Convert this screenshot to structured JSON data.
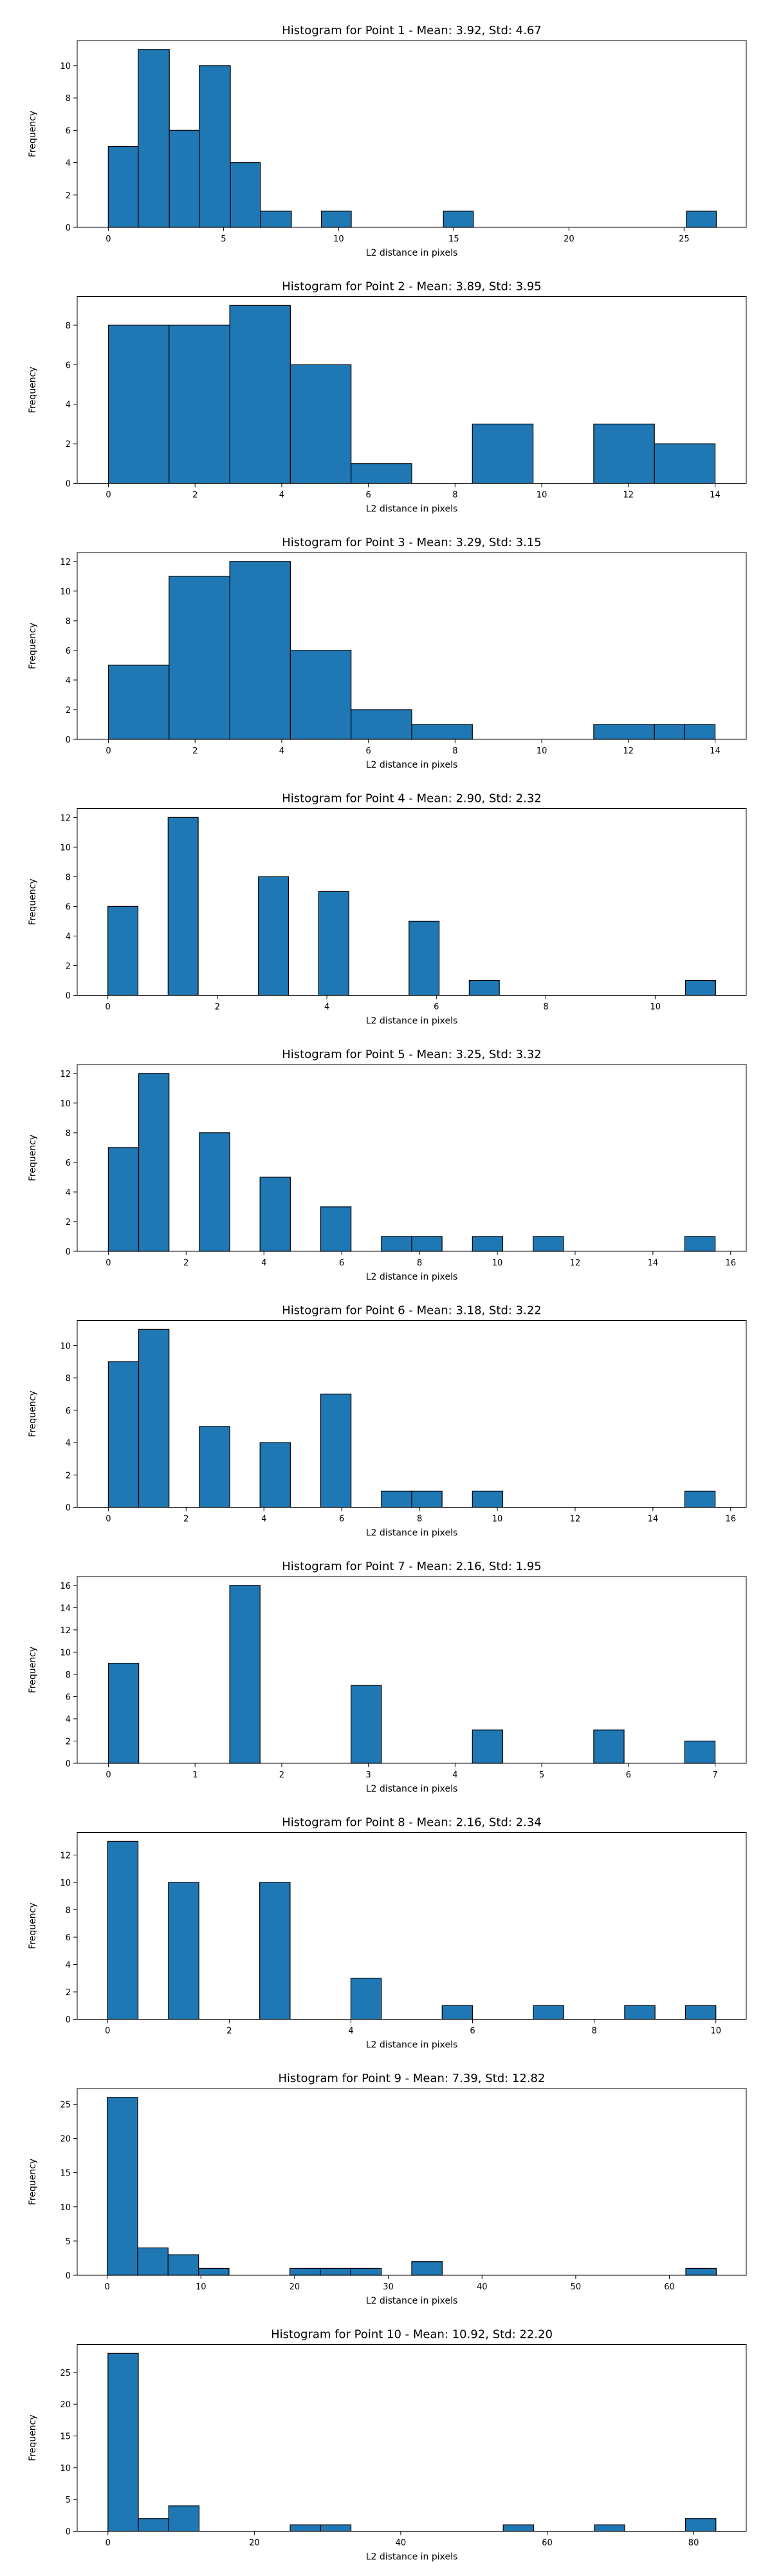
{
  "chart_data": [
    {
      "type": "bar",
      "title": "Histogram for Point 1 - Mean: 3.92, Std: 4.67",
      "xlabel": "L2 distance in pixels",
      "ylabel": "Frequency",
      "bar_color": "#1f77b4",
      "xlim": [
        -1.35,
        27.7
      ],
      "ylim": [
        0,
        11.55
      ],
      "xticks": [
        0,
        5,
        10,
        15,
        20,
        25
      ],
      "yticks": [
        0,
        2,
        4,
        6,
        8,
        10
      ],
      "bins": [
        {
          "x0": 0.0,
          "x1": 1.3,
          "value": 5
        },
        {
          "x0": 1.3,
          "x1": 2.65,
          "value": 11
        },
        {
          "x0": 2.65,
          "x1": 3.95,
          "value": 6
        },
        {
          "x0": 3.95,
          "x1": 5.3,
          "value": 10
        },
        {
          "x0": 5.3,
          "x1": 6.6,
          "value": 4
        },
        {
          "x0": 6.6,
          "x1": 7.95,
          "value": 1
        },
        {
          "x0": 9.25,
          "x1": 10.55,
          "value": 1
        },
        {
          "x0": 14.55,
          "x1": 15.85,
          "value": 1
        },
        {
          "x0": 25.1,
          "x1": 26.4,
          "value": 1
        }
      ]
    },
    {
      "type": "bar",
      "title": "Histogram for Point 2 - Mean: 3.89, Std: 3.95",
      "xlabel": "L2 distance in pixels",
      "ylabel": "Frequency",
      "bar_color": "#1f77b4",
      "xlim": [
        -0.72,
        14.72
      ],
      "ylim": [
        0,
        9.45
      ],
      "xticks": [
        0,
        2,
        4,
        6,
        8,
        10,
        12,
        14
      ],
      "yticks": [
        0,
        2,
        4,
        6,
        8
      ],
      "bins": [
        {
          "x0": 0.0,
          "x1": 1.4,
          "value": 8
        },
        {
          "x0": 1.4,
          "x1": 2.8,
          "value": 8
        },
        {
          "x0": 2.8,
          "x1": 4.2,
          "value": 9
        },
        {
          "x0": 4.2,
          "x1": 5.6,
          "value": 6
        },
        {
          "x0": 5.6,
          "x1": 7.0,
          "value": 1
        },
        {
          "x0": 8.4,
          "x1": 9.8,
          "value": 3
        },
        {
          "x0": 11.2,
          "x1": 12.6,
          "value": 3
        },
        {
          "x0": 12.6,
          "x1": 14.0,
          "value": 2
        }
      ]
    },
    {
      "type": "bar",
      "title": "Histogram for Point 3 - Mean: 3.29, Std: 3.15",
      "xlabel": "L2 distance in pixels",
      "ylabel": "Frequency",
      "bar_color": "#1f77b4",
      "xlim": [
        -0.72,
        14.72
      ],
      "ylim": [
        0,
        12.6
      ],
      "xticks": [
        0,
        2,
        4,
        6,
        8,
        10,
        12,
        14
      ],
      "yticks": [
        0,
        2,
        4,
        6,
        8,
        10,
        12
      ],
      "bins": [
        {
          "x0": 0.0,
          "x1": 1.4,
          "value": 5
        },
        {
          "x0": 1.4,
          "x1": 2.8,
          "value": 11
        },
        {
          "x0": 2.8,
          "x1": 4.2,
          "value": 12
        },
        {
          "x0": 4.2,
          "x1": 5.6,
          "value": 6
        },
        {
          "x0": 5.6,
          "x1": 7.0,
          "value": 2
        },
        {
          "x0": 7.0,
          "x1": 8.4,
          "value": 1
        },
        {
          "x0": 11.2,
          "x1": 12.6,
          "value": 1
        },
        {
          "x0": 12.6,
          "x1": 14.0,
          "value": 1
        },
        {
          "x0": 14.0,
          "x1": 14.0,
          "value": 0
        }
      ],
      "extra_bins_note": "",
      "bins_fixed": [
        {
          "x0": 0.0,
          "x1": 1.4,
          "value": 5
        },
        {
          "x0": 1.4,
          "x1": 2.8,
          "value": 11
        },
        {
          "x0": 2.8,
          "x1": 4.2,
          "value": 12
        },
        {
          "x0": 4.2,
          "x1": 5.6,
          "value": 6
        },
        {
          "x0": 5.6,
          "x1": 7.0,
          "value": 2
        },
        {
          "x0": 7.0,
          "x1": 8.4,
          "value": 1
        },
        {
          "x0": 11.2,
          "x1": 12.6,
          "value": 1
        },
        {
          "x0": 12.6,
          "x1": 13.3,
          "value": 1
        },
        {
          "x0": 13.3,
          "x1": 14.0,
          "value": 1
        }
      ]
    },
    {
      "type": "bar",
      "title": "Histogram for Point 4 - Mean: 2.90, Std: 2.32",
      "xlabel": "L2 distance in pixels",
      "ylabel": "Frequency",
      "bar_color": "#1f77b4",
      "xlim": [
        -0.56,
        11.66
      ],
      "ylim": [
        0,
        12.6
      ],
      "xticks": [
        0,
        2,
        4,
        6,
        8,
        10
      ],
      "yticks": [
        0,
        2,
        4,
        6,
        8,
        10,
        12
      ],
      "bins": [
        {
          "x0": 0.0,
          "x1": 0.55,
          "value": 6
        },
        {
          "x0": 1.1,
          "x1": 1.65,
          "value": 12
        },
        {
          "x0": 2.75,
          "x1": 3.3,
          "value": 8
        },
        {
          "x0": 3.85,
          "x1": 4.4,
          "value": 7
        },
        {
          "x0": 5.5,
          "x1": 6.05,
          "value": 5
        },
        {
          "x0": 6.6,
          "x1": 7.15,
          "value": 1
        },
        {
          "x0": 10.55,
          "x1": 11.1,
          "value": 1
        }
      ]
    },
    {
      "type": "bar",
      "title": "Histogram for Point 5 - Mean: 3.25, Std: 3.32",
      "xlabel": "L2 distance in pixels",
      "ylabel": "Frequency",
      "bar_color": "#1f77b4",
      "xlim": [
        -0.8,
        16.4
      ],
      "ylim": [
        0,
        12.6
      ],
      "xticks": [
        0,
        2,
        4,
        6,
        8,
        10,
        12,
        14,
        16
      ],
      "yticks": [
        0,
        2,
        4,
        6,
        8,
        10,
        12
      ],
      "bins": [
        {
          "x0": 0.0,
          "x1": 0.78,
          "value": 7
        },
        {
          "x0": 0.78,
          "x1": 1.56,
          "value": 12
        },
        {
          "x0": 2.34,
          "x1": 3.12,
          "value": 8
        },
        {
          "x0": 3.9,
          "x1": 4.68,
          "value": 5
        },
        {
          "x0": 5.46,
          "x1": 6.24,
          "value": 3
        },
        {
          "x0": 7.02,
          "x1": 7.8,
          "value": 1
        },
        {
          "x0": 7.8,
          "x1": 8.58,
          "value": 1
        },
        {
          "x0": 9.36,
          "x1": 10.14,
          "value": 1
        },
        {
          "x0": 10.92,
          "x1": 11.7,
          "value": 1
        },
        {
          "x0": 14.82,
          "x1": 15.6,
          "value": 1
        }
      ]
    },
    {
      "type": "bar",
      "title": "Histogram for Point 6 - Mean: 3.18, Std: 3.22",
      "xlabel": "L2 distance in pixels",
      "ylabel": "Frequency",
      "bar_color": "#1f77b4",
      "xlim": [
        -0.8,
        16.4
      ],
      "ylim": [
        0,
        11.55
      ],
      "xticks": [
        0,
        2,
        4,
        6,
        8,
        10,
        12,
        14,
        16
      ],
      "yticks": [
        0,
        2,
        4,
        6,
        8,
        10
      ],
      "bins": [
        {
          "x0": 0.0,
          "x1": 0.78,
          "value": 9
        },
        {
          "x0": 0.78,
          "x1": 1.56,
          "value": 11
        },
        {
          "x0": 2.34,
          "x1": 3.12,
          "value": 5
        },
        {
          "x0": 3.9,
          "x1": 4.68,
          "value": 4
        },
        {
          "x0": 5.46,
          "x1": 6.24,
          "value": 7
        },
        {
          "x0": 7.02,
          "x1": 7.8,
          "value": 1
        },
        {
          "x0": 7.8,
          "x1": 8.58,
          "value": 1
        },
        {
          "x0": 9.36,
          "x1": 10.14,
          "value": 1
        },
        {
          "x0": 14.82,
          "x1": 15.6,
          "value": 1
        }
      ]
    },
    {
      "type": "bar",
      "title": "Histogram for Point 7 - Mean: 2.16, Std: 1.95",
      "xlabel": "L2 distance in pixels",
      "ylabel": "Frequency",
      "bar_color": "#1f77b4",
      "xlim": [
        -0.36,
        7.36
      ],
      "ylim": [
        0,
        16.8
      ],
      "xticks": [
        0,
        1,
        2,
        3,
        4,
        5,
        6,
        7
      ],
      "yticks": [
        0,
        2,
        4,
        6,
        8,
        10,
        12,
        14,
        16
      ],
      "bins": [
        {
          "x0": 0.0,
          "x1": 0.35,
          "value": 9
        },
        {
          "x0": 1.4,
          "x1": 1.75,
          "value": 16
        },
        {
          "x0": 2.8,
          "x1": 3.15,
          "value": 7
        },
        {
          "x0": 4.2,
          "x1": 4.55,
          "value": 3
        },
        {
          "x0": 5.6,
          "x1": 5.95,
          "value": 3
        },
        {
          "x0": 6.65,
          "x1": 7.0,
          "value": 2
        }
      ]
    },
    {
      "type": "bar",
      "title": "Histogram for Point 8 - Mean: 2.16, Std: 2.34",
      "xlabel": "L2 distance in pixels",
      "ylabel": "Frequency",
      "bar_color": "#1f77b4",
      "xlim": [
        -0.5,
        10.5
      ],
      "ylim": [
        0,
        13.65
      ],
      "xticks": [
        0,
        2,
        4,
        6,
        8,
        10
      ],
      "yticks": [
        0,
        2,
        4,
        6,
        8,
        10,
        12
      ],
      "bins": [
        {
          "x0": 0.0,
          "x1": 0.5,
          "value": 13
        },
        {
          "x0": 1.0,
          "x1": 1.5,
          "value": 10
        },
        {
          "x0": 2.5,
          "x1": 3.0,
          "value": 10
        },
        {
          "x0": 4.0,
          "x1": 4.5,
          "value": 3
        },
        {
          "x0": 5.5,
          "x1": 6.0,
          "value": 1
        },
        {
          "x0": 7.0,
          "x1": 7.5,
          "value": 1
        },
        {
          "x0": 8.5,
          "x1": 9.0,
          "value": 1
        },
        {
          "x0": 9.5,
          "x1": 10.0,
          "value": 1
        }
      ]
    },
    {
      "type": "bar",
      "title": "Histogram for Point 9 - Mean: 7.39, Std: 12.82",
      "xlabel": "L2 distance in pixels",
      "ylabel": "Frequency",
      "bar_color": "#1f77b4",
      "xlim": [
        -3.2,
        68.2
      ],
      "ylim": [
        0,
        27.3
      ],
      "xticks": [
        0,
        10,
        20,
        30,
        40,
        50,
        60
      ],
      "yticks": [
        0,
        5,
        10,
        15,
        20,
        25
      ],
      "bins": [
        {
          "x0": 0.0,
          "x1": 3.25,
          "value": 26
        },
        {
          "x0": 3.25,
          "x1": 6.5,
          "value": 4
        },
        {
          "x0": 6.5,
          "x1": 9.75,
          "value": 3
        },
        {
          "x0": 9.75,
          "x1": 13.0,
          "value": 1
        },
        {
          "x0": 19.5,
          "x1": 22.75,
          "value": 1
        },
        {
          "x0": 22.75,
          "x1": 26.0,
          "value": 1
        },
        {
          "x0": 26.0,
          "x1": 29.25,
          "value": 1
        },
        {
          "x0": 32.5,
          "x1": 35.75,
          "value": 2
        },
        {
          "x0": 61.75,
          "x1": 65.0,
          "value": 1
        }
      ]
    },
    {
      "type": "bar",
      "title": "Histogram for Point 10 - Mean: 10.92, Std: 22.20",
      "xlabel": "L2 distance in pixels",
      "ylabel": "Frequency",
      "bar_color": "#1f77b4",
      "xlim": [
        -4.2,
        87.2
      ],
      "ylim": [
        0,
        29.4
      ],
      "xticks": [
        0,
        20,
        40,
        60,
        80
      ],
      "yticks": [
        0,
        5,
        10,
        15,
        20,
        25
      ],
      "bins": [
        {
          "x0": 0.0,
          "x1": 4.15,
          "value": 28
        },
        {
          "x0": 4.15,
          "x1": 8.3,
          "value": 2
        },
        {
          "x0": 8.3,
          "x1": 12.45,
          "value": 4
        },
        {
          "x0": 24.9,
          "x1": 29.05,
          "value": 1
        },
        {
          "x0": 29.05,
          "x1": 33.2,
          "value": 1
        },
        {
          "x0": 54.0,
          "x1": 58.15,
          "value": 1
        },
        {
          "x0": 66.45,
          "x1": 70.6,
          "value": 1
        },
        {
          "x0": 78.9,
          "x1": 83.05,
          "value": 2
        }
      ]
    }
  ]
}
